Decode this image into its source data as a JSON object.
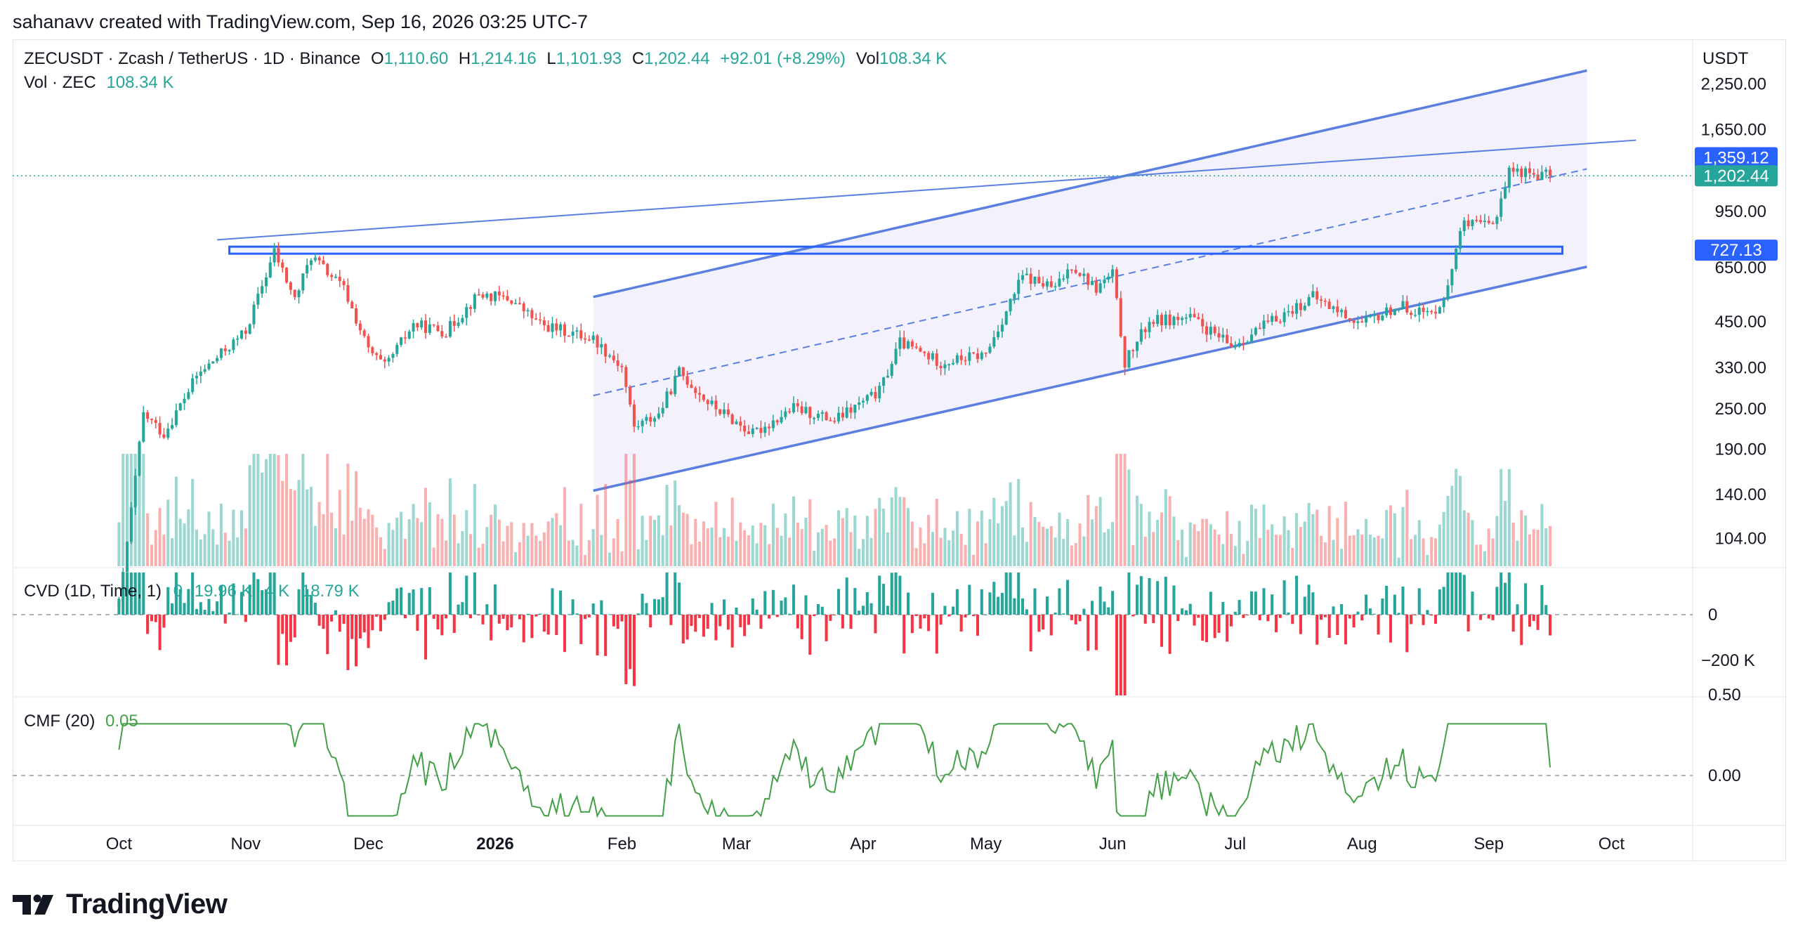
{
  "header": {
    "author": "sahanavv created with TradingView.com, Sep 16, 2026 03:25 UTC-7"
  },
  "legend": {
    "symbol": "ZECUSDT · Zcash / TetherUS · 1D · Binance",
    "open_label": "O",
    "open": "1,110.60",
    "high_label": "H",
    "high": "1,214.16",
    "low_label": "L",
    "low": "1,101.93",
    "close_label": "C",
    "close": "1,202.44",
    "change": "+92.01 (+8.29%)",
    "vol_label": "Vol",
    "vol": "108.34 K",
    "vol_line_label": "Vol · ZEC",
    "vol_line_value": "108.34 K"
  },
  "cvd": {
    "label": "CVD (1D, Time, 1)",
    "v1": "0",
    "v2": "19.96 K",
    "v3": "4 K",
    "v4": "18.79 K"
  },
  "cmf": {
    "label": "CMF (20)",
    "value": "0.05"
  },
  "price_axis": {
    "currency": "USDT",
    "ticks": [
      "2,250.00",
      "1,650.00",
      "950.00",
      "650.00",
      "450.00",
      "330.00",
      "250.00",
      "190.00",
      "140.00",
      "104.00"
    ],
    "badge_resistance": "1,359.12",
    "badge_last": "1,202.44",
    "badge_level": "727.13"
  },
  "cvd_axis": {
    "ticks": [
      "0",
      "−200 K"
    ]
  },
  "cmf_axis": {
    "ticks": [
      "0.50",
      "0.00"
    ]
  },
  "time_axis": {
    "labels": [
      "Oct",
      "Nov",
      "Dec",
      "2026",
      "Feb",
      "Mar",
      "Apr",
      "May",
      "Jun",
      "Jul",
      "Aug",
      "Sep",
      "Oct"
    ],
    "bold_index": 3
  },
  "brand": {
    "name": "TradingView"
  },
  "colors": {
    "up": "#26a69a",
    "down": "#ef5350",
    "trendline": "#5b7fe0",
    "badge_blue": "#2962ff",
    "badge_green": "#26a69a",
    "cmf_line": "#43a047"
  },
  "chart_data": {
    "type": "candlestick",
    "title": "ZECUSDT · Zcash / TetherUS · 1D · Binance",
    "scale": "log",
    "ylim": [
      85,
      2700
    ],
    "x": [
      "Oct",
      "Nov",
      "Dec",
      "2026",
      "Feb",
      "Mar",
      "Apr",
      "May",
      "Jun",
      "Jul",
      "Aug",
      "Sep",
      "Oct"
    ],
    "price_path": [
      [
        "2025-10-01",
        65
      ],
      [
        "2025-10-07",
        240
      ],
      [
        "2025-10-12",
        210
      ],
      [
        "2025-10-20",
        310
      ],
      [
        "2025-11-01",
        420
      ],
      [
        "2025-11-08",
        720
      ],
      [
        "2025-11-13",
        520
      ],
      [
        "2025-11-17",
        700
      ],
      [
        "2025-11-25",
        560
      ],
      [
        "2025-12-01",
        370
      ],
      [
        "2025-12-05",
        330
      ],
      [
        "2025-12-12",
        440
      ],
      [
        "2025-12-20",
        420
      ],
      [
        "2025-12-28",
        540
      ],
      [
        "2026-01-05",
        520
      ],
      [
        "2026-01-12",
        440
      ],
      [
        "2026-01-25",
        400
      ],
      [
        "2026-02-01",
        330
      ],
      [
        "2026-02-04",
        220
      ],
      [
        "2026-02-10",
        240
      ],
      [
        "2026-02-15",
        320
      ],
      [
        "2026-02-22",
        260
      ],
      [
        "2026-03-05",
        210
      ],
      [
        "2026-03-15",
        250
      ],
      [
        "2026-03-25",
        230
      ],
      [
        "2026-04-05",
        280
      ],
      [
        "2026-04-10",
        390
      ],
      [
        "2026-04-20",
        340
      ],
      [
        "2026-05-01",
        360
      ],
      [
        "2026-05-10",
        610
      ],
      [
        "2026-05-18",
        560
      ],
      [
        "2026-05-22",
        660
      ],
      [
        "2026-05-28",
        560
      ],
      [
        "2026-06-01",
        620
      ],
      [
        "2026-06-04",
        340
      ],
      [
        "2026-06-10",
        450
      ],
      [
        "2026-06-20",
        460
      ],
      [
        "2026-06-30",
        380
      ],
      [
        "2026-07-10",
        450
      ],
      [
        "2026-07-20",
        530
      ],
      [
        "2026-08-01",
        440
      ],
      [
        "2026-08-10",
        500
      ],
      [
        "2026-08-18",
        470
      ],
      [
        "2026-08-22",
        560
      ],
      [
        "2026-08-25",
        860
      ],
      [
        "2026-09-02",
        860
      ],
      [
        "2026-09-06",
        1250
      ],
      [
        "2026-09-16",
        1202.44
      ]
    ],
    "levels": {
      "resistance": 1359.12,
      "last": 1202.44,
      "horizontal_zone": 727.13
    },
    "cvd": {
      "ticks": [
        0,
        -200000
      ]
    },
    "cmf": {
      "ticks": [
        0.5,
        0
      ],
      "last": 0.05
    }
  }
}
